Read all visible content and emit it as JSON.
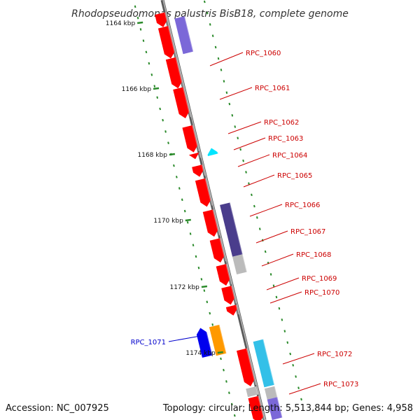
{
  "header": {
    "title": "Rhodopseudomonas palustris BisB18, complete genome"
  },
  "footer": {
    "accession": "Accession: NC_007925",
    "summary": "Topology: circular; Length: 5,513,844 bp; Genes: 4,958"
  },
  "colors": {
    "backbone": "#8a8a8a",
    "scale_tick": "#2a8a2a",
    "gene_red": "#ff0000",
    "gene_purple_light": "#7b68d8",
    "gene_purple_dark": "#4a3d8c",
    "gene_grey": "#bbbbbb",
    "gene_cyan": "#00e5ff",
    "gene_sky": "#33c0e8",
    "gene_orange": "#ff9900",
    "gene_blue": "#0000ee",
    "label_red": "#cc0000",
    "label_blue": "#0000cc"
  },
  "scale": {
    "ticks": [
      {
        "label": "1164 kbp"
      },
      {
        "label": "1166 kbp"
      },
      {
        "label": "1168 kbp"
      },
      {
        "label": "1170 kbp"
      },
      {
        "label": "1172 kbp"
      },
      {
        "label": "1174 kbp"
      }
    ]
  },
  "gene_labels": [
    {
      "name": "RPC_1060",
      "color": "red"
    },
    {
      "name": "RPC_1061",
      "color": "red"
    },
    {
      "name": "RPC_1062",
      "color": "red"
    },
    {
      "name": "RPC_1063",
      "color": "red"
    },
    {
      "name": "RPC_1064",
      "color": "red"
    },
    {
      "name": "RPC_1065",
      "color": "red"
    },
    {
      "name": "RPC_1066",
      "color": "red"
    },
    {
      "name": "RPC_1067",
      "color": "red"
    },
    {
      "name": "RPC_1068",
      "color": "red"
    },
    {
      "name": "RPC_1069",
      "color": "red"
    },
    {
      "name": "RPC_1070",
      "color": "red"
    },
    {
      "name": "RPC_1071",
      "color": "blue"
    },
    {
      "name": "RPC_1072",
      "color": "red"
    },
    {
      "name": "RPC_1073",
      "color": "red"
    }
  ]
}
